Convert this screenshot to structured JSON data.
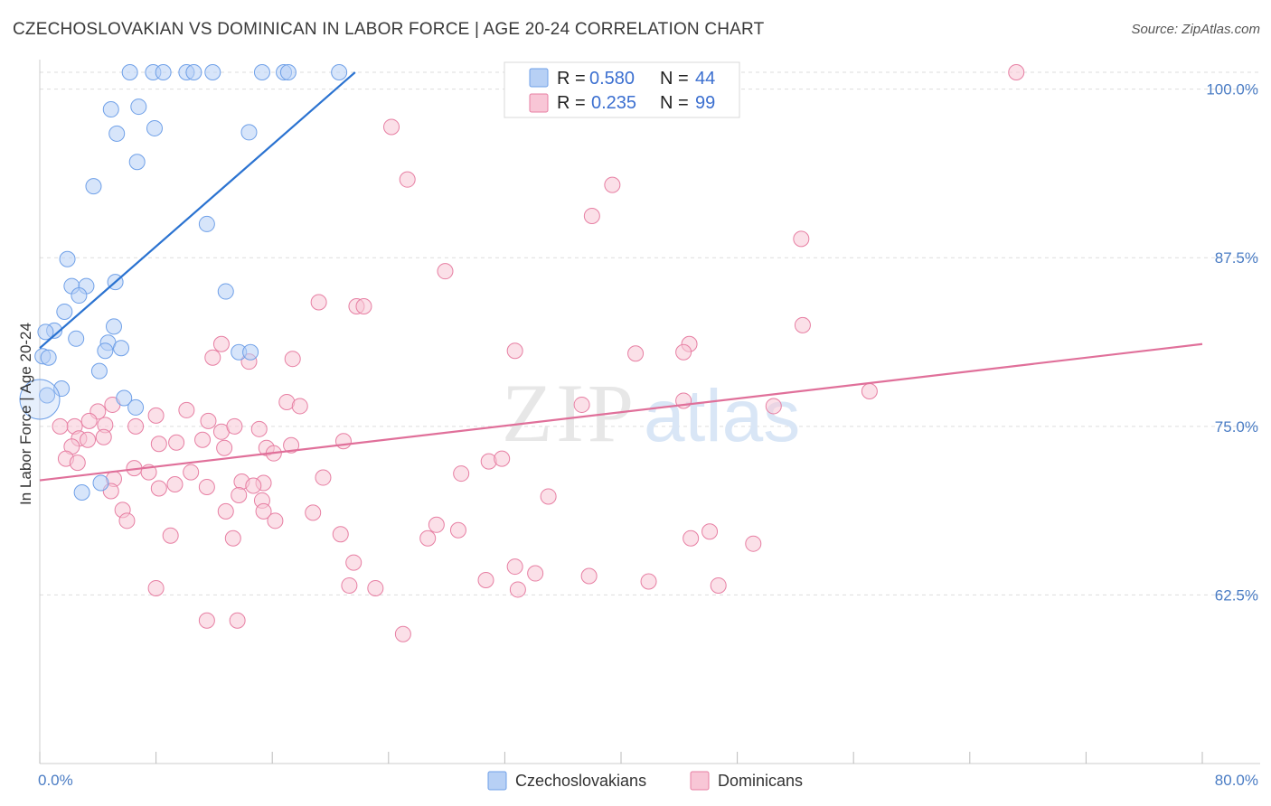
{
  "title": "CZECHOSLOVAKIAN VS DOMINICAN IN LABOR FORCE | AGE 20-24 CORRELATION CHART",
  "source": "Source: ZipAtlas.com",
  "watermark": {
    "zip": "ZIP",
    "atlas": "atlas"
  },
  "chart_data": {
    "type": "scatter",
    "ylabel": "In Labor Force | Age 20-24",
    "xlim": [
      0,
      80
    ],
    "ylim": [
      50.0,
      101.25
    ],
    "x_tick_labels": [
      "0.0%",
      "80.0%"
    ],
    "y_ticks": [
      62.5,
      75.0,
      87.5,
      100.0
    ],
    "y_tick_labels": [
      "62.5%",
      "75.0%",
      "87.5%",
      "100.0%"
    ],
    "colors": {
      "blue": "#6fa0e8",
      "blue_fill": "#b7d0f5",
      "pink": "#e77fa3",
      "pink_fill": "#f8c6d6",
      "blue_line": "#2b73d1",
      "pink_line": "#e0709a"
    },
    "legend_top": [
      {
        "r_label": "R = ",
        "r_value": "0.580",
        "n_label": "N = ",
        "n_value": "44"
      },
      {
        "r_label": "R = ",
        "r_value": "0.235",
        "n_label": "N = ",
        "n_value": "99"
      }
    ],
    "series": [
      {
        "name": "Czechoslovakians",
        "trend": {
          "x0": 0.0,
          "y0": 80.8,
          "x1": 21.7,
          "y1": 101.25
        },
        "points": [
          [
            6.2,
            101.25
          ],
          [
            7.8,
            101.25
          ],
          [
            8.5,
            101.25
          ],
          [
            10.1,
            101.25
          ],
          [
            10.6,
            101.25
          ],
          [
            11.9,
            101.25
          ],
          [
            15.3,
            101.25
          ],
          [
            16.8,
            101.25
          ],
          [
            17.1,
            101.25
          ],
          [
            20.6,
            101.25
          ],
          [
            4.9,
            98.5
          ],
          [
            6.8,
            98.7
          ],
          [
            7.9,
            97.1
          ],
          [
            5.3,
            96.7
          ],
          [
            14.4,
            96.8
          ],
          [
            6.7,
            94.6
          ],
          [
            3.7,
            92.8
          ],
          [
            11.5,
            90.0
          ],
          [
            1.9,
            87.4
          ],
          [
            2.2,
            85.4
          ],
          [
            3.2,
            85.4
          ],
          [
            5.2,
            85.7
          ],
          [
            2.7,
            84.7
          ],
          [
            12.8,
            85.0
          ],
          [
            1.7,
            83.5
          ],
          [
            1.0,
            82.1
          ],
          [
            5.1,
            82.4
          ],
          [
            0.4,
            82.0
          ],
          [
            2.5,
            81.5
          ],
          [
            4.7,
            81.2
          ],
          [
            5.6,
            80.8
          ],
          [
            4.5,
            80.6
          ],
          [
            13.7,
            80.5
          ],
          [
            14.5,
            80.5
          ],
          [
            0.2,
            80.2
          ],
          [
            0.6,
            80.1
          ],
          [
            4.1,
            79.1
          ],
          [
            1.5,
            77.8
          ],
          [
            5.8,
            77.1
          ],
          [
            0.5,
            77.3
          ],
          [
            6.6,
            76.4
          ],
          [
            4.2,
            70.8
          ],
          [
            2.9,
            70.1
          ],
          [
            0.0,
            77.0
          ]
        ]
      },
      {
        "name": "Dominicans",
        "trend": {
          "x0": 0.0,
          "y0": 71.0,
          "x1": 80.0,
          "y1": 81.1
        },
        "points": [
          [
            67.2,
            101.25
          ],
          [
            24.2,
            97.2
          ],
          [
            25.3,
            93.3
          ],
          [
            39.4,
            92.9
          ],
          [
            38.0,
            90.6
          ],
          [
            52.4,
            88.9
          ],
          [
            27.9,
            86.5
          ],
          [
            19.2,
            84.2
          ],
          [
            21.8,
            83.9
          ],
          [
            22.3,
            83.9
          ],
          [
            52.5,
            82.5
          ],
          [
            44.7,
            81.1
          ],
          [
            12.5,
            81.1
          ],
          [
            32.7,
            80.6
          ],
          [
            41.0,
            80.4
          ],
          [
            44.3,
            80.5
          ],
          [
            11.9,
            80.1
          ],
          [
            17.4,
            80.0
          ],
          [
            14.4,
            79.8
          ],
          [
            57.1,
            77.6
          ],
          [
            17.0,
            76.8
          ],
          [
            44.3,
            76.9
          ],
          [
            10.1,
            76.2
          ],
          [
            5.0,
            76.6
          ],
          [
            17.9,
            76.5
          ],
          [
            50.5,
            76.5
          ],
          [
            37.3,
            76.6
          ],
          [
            4.0,
            76.1
          ],
          [
            8.0,
            75.8
          ],
          [
            11.6,
            75.4
          ],
          [
            3.4,
            75.4
          ],
          [
            4.5,
            75.1
          ],
          [
            6.6,
            75.0
          ],
          [
            15.1,
            74.8
          ],
          [
            2.4,
            75.0
          ],
          [
            1.4,
            75.0
          ],
          [
            12.5,
            74.6
          ],
          [
            13.4,
            75.0
          ],
          [
            2.7,
            74.1
          ],
          [
            3.3,
            74.0
          ],
          [
            11.2,
            74.0
          ],
          [
            17.3,
            73.6
          ],
          [
            20.9,
            73.9
          ],
          [
            8.2,
            73.7
          ],
          [
            4.4,
            74.2
          ],
          [
            12.7,
            73.4
          ],
          [
            2.2,
            73.5
          ],
          [
            9.4,
            73.8
          ],
          [
            15.6,
            73.4
          ],
          [
            16.1,
            73.0
          ],
          [
            1.8,
            72.6
          ],
          [
            2.6,
            72.3
          ],
          [
            30.9,
            72.4
          ],
          [
            31.8,
            72.6
          ],
          [
            6.5,
            71.9
          ],
          [
            7.5,
            71.6
          ],
          [
            5.1,
            71.1
          ],
          [
            10.4,
            71.6
          ],
          [
            13.9,
            70.9
          ],
          [
            15.4,
            70.8
          ],
          [
            9.3,
            70.7
          ],
          [
            8.2,
            70.4
          ],
          [
            14.7,
            70.6
          ],
          [
            13.7,
            69.9
          ],
          [
            15.3,
            69.5
          ],
          [
            19.5,
            71.2
          ],
          [
            4.9,
            70.2
          ],
          [
            29.0,
            71.5
          ],
          [
            11.5,
            70.5
          ],
          [
            35.0,
            69.8
          ],
          [
            12.8,
            68.7
          ],
          [
            5.7,
            68.8
          ],
          [
            6.0,
            68.0
          ],
          [
            15.4,
            68.7
          ],
          [
            16.2,
            68.0
          ],
          [
            27.3,
            67.7
          ],
          [
            18.8,
            68.6
          ],
          [
            9.0,
            66.9
          ],
          [
            13.3,
            66.7
          ],
          [
            28.8,
            67.3
          ],
          [
            26.7,
            66.7
          ],
          [
            20.7,
            67.0
          ],
          [
            46.1,
            67.2
          ],
          [
            21.6,
            64.9
          ],
          [
            32.7,
            64.6
          ],
          [
            21.3,
            63.2
          ],
          [
            23.1,
            63.0
          ],
          [
            30.7,
            63.6
          ],
          [
            34.1,
            64.1
          ],
          [
            32.9,
            62.9
          ],
          [
            37.8,
            63.9
          ],
          [
            41.9,
            63.5
          ],
          [
            44.8,
            66.7
          ],
          [
            49.1,
            66.3
          ],
          [
            46.7,
            63.2
          ],
          [
            8.0,
            63.0
          ],
          [
            11.5,
            60.6
          ],
          [
            13.6,
            60.6
          ],
          [
            25.0,
            59.6
          ]
        ]
      }
    ]
  },
  "legend_bottom": [
    "Czechoslovakians",
    "Dominicans"
  ]
}
